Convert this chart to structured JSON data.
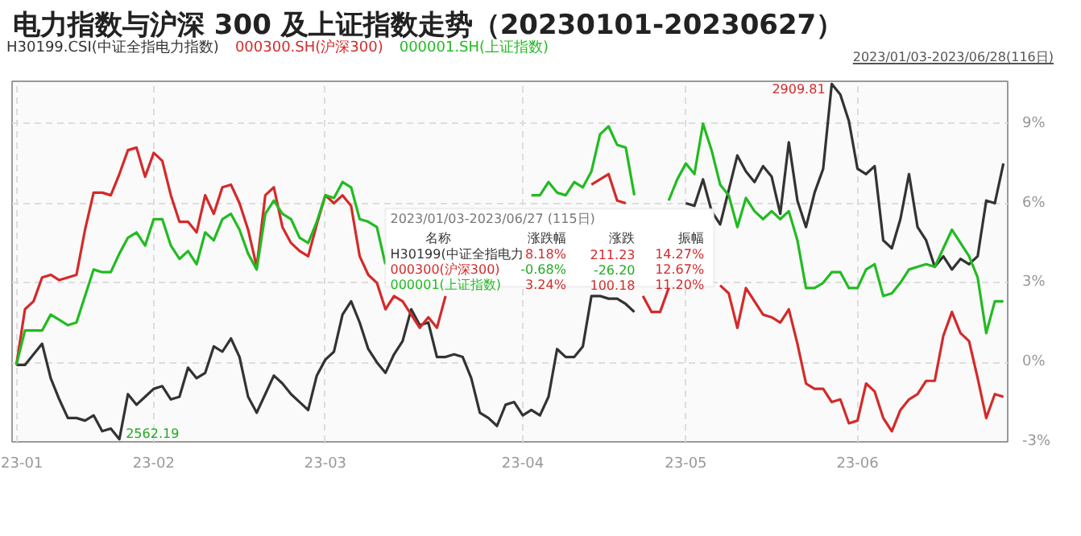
{
  "chart_data": {
    "type": "line",
    "title": "电力指数与沪深 300 及上证指数走势（20230101-20230627）",
    "legend": "top left",
    "grid": true,
    "marker": "none",
    "line_style": "solid",
    "categories": [
      "23-01",
      null,
      null,
      null,
      null,
      null,
      null,
      null,
      null,
      null,
      null,
      null,
      null,
      null,
      null,
      null,
      "23-02",
      null,
      null,
      null,
      null,
      null,
      null,
      null,
      null,
      null,
      null,
      null,
      null,
      null,
      null,
      null,
      null,
      null,
      null,
      null,
      "23-03",
      null,
      null,
      null,
      null,
      null,
      null,
      null,
      null,
      null,
      null,
      null,
      null,
      null,
      null,
      null,
      null,
      null,
      null,
      null,
      null,
      null,
      null,
      "23-04",
      null,
      null,
      null,
      null,
      null,
      null,
      null,
      null,
      null,
      null,
      null,
      null,
      null,
      null,
      null,
      null,
      null,
      null,
      "23-05",
      null,
      null,
      null,
      null,
      null,
      null,
      null,
      null,
      null,
      null,
      null,
      null,
      null,
      null,
      null,
      null,
      null,
      null,
      null,
      "23-06",
      null,
      null,
      null,
      null,
      null,
      null,
      null,
      null,
      null,
      null,
      null,
      null,
      null,
      null,
      null,
      null,
      null
    ],
    "ylim": [
      -3,
      10.6
    ],
    "yticks": [
      {
        "value": -3,
        "label": "-3%"
      },
      {
        "value": 0,
        "label": "0%"
      },
      {
        "value": 3,
        "label": "3%"
      },
      {
        "value": 6,
        "label": "6%"
      },
      {
        "value": 9,
        "label": "9%"
      }
    ],
    "series": [
      {
        "name": "H30199.CSI(中证全指电力指数)",
        "color": "#333333",
        "values": [
          -0.1,
          -0.1,
          0.3,
          0.7,
          -0.6,
          -1.4,
          -2.1,
          -2.1,
          -2.2,
          -2.0,
          -2.6,
          -2.5,
          -2.9,
          -1.2,
          -1.6,
          -1.3,
          -1.0,
          -0.9,
          -1.4,
          -1.3,
          -0.2,
          -0.6,
          -0.4,
          0.6,
          0.4,
          0.9,
          0.2,
          -1.3,
          -1.9,
          -1.2,
          -0.5,
          -0.8,
          -1.2,
          -1.5,
          -1.8,
          -0.5,
          0.1,
          0.4,
          1.8,
          2.3,
          1.5,
          0.5,
          0.0,
          -0.4,
          0.3,
          0.8,
          2.0,
          1.4,
          1.5,
          0.2,
          0.2,
          0.3,
          0.2,
          -0.6,
          -1.9,
          -2.1,
          -2.4,
          -1.6,
          -1.5,
          -2.0,
          -1.8,
          -2.0,
          -1.3,
          0.5,
          0.2,
          0.2,
          0.6,
          2.5,
          2.5,
          2.4,
          2.4,
          2.2,
          1.9,
          null,
          null,
          null,
          null,
          null,
          6.0,
          5.9,
          6.9,
          5.7,
          5.2,
          6.5,
          7.8,
          7.2,
          6.8,
          7.4,
          7.0,
          5.6,
          8.3,
          6.1,
          5.1,
          6.4,
          7.3,
          10.5,
          10.1,
          9.1,
          7.3,
          7.1,
          7.4,
          4.6,
          4.3,
          5.4,
          7.1,
          5.1,
          4.6,
          3.6,
          4.0,
          3.5,
          3.9,
          3.7,
          4.0,
          6.1,
          6.0,
          7.5
        ]
      },
      {
        "name": "000300.SH(沪深300)",
        "color": "#d42a2a",
        "values": [
          -0.1,
          2.0,
          2.3,
          3.2,
          3.3,
          3.1,
          3.2,
          3.3,
          5.0,
          6.4,
          6.4,
          6.3,
          7.1,
          8.0,
          8.1,
          7.0,
          7.9,
          7.6,
          6.3,
          5.3,
          5.3,
          4.9,
          6.3,
          5.6,
          6.6,
          6.7,
          6.0,
          5.0,
          3.6,
          6.3,
          6.6,
          5.1,
          4.5,
          4.2,
          4.0,
          5.2,
          6.3,
          6.0,
          6.3,
          5.9,
          4.0,
          3.3,
          3.0,
          2.0,
          2.5,
          2.3,
          1.8,
          1.3,
          1.7,
          1.3,
          2.5,
          null,
          null,
          null,
          null,
          null,
          null,
          null,
          null,
          null,
          null,
          null,
          null,
          null,
          null,
          null,
          null,
          6.7,
          6.9,
          7.1,
          6.1,
          6.0,
          null,
          2.5,
          1.9,
          1.9,
          2.8,
          null,
          null,
          null,
          null,
          null,
          2.9,
          2.6,
          1.3,
          2.8,
          2.3,
          1.8,
          1.7,
          1.5,
          2.0,
          0.7,
          -0.8,
          -1.0,
          -1.0,
          -1.5,
          -1.4,
          -2.3,
          -2.2,
          -0.8,
          -1.1,
          -2.1,
          -2.6,
          -1.8,
          -1.4,
          -1.2,
          -0.7,
          -0.7,
          1.0,
          1.9,
          1.1,
          0.8,
          -0.6,
          -2.1,
          -1.2,
          -1.3
        ]
      },
      {
        "name": "000001.SH(上证指数)",
        "color": "#22bb22",
        "values": [
          -0.1,
          1.2,
          1.2,
          1.2,
          1.8,
          1.6,
          1.4,
          1.5,
          2.5,
          3.5,
          3.4,
          3.4,
          4.1,
          4.7,
          4.9,
          4.4,
          5.4,
          5.4,
          4.4,
          3.9,
          4.2,
          3.7,
          4.9,
          4.6,
          5.4,
          5.6,
          5.0,
          4.1,
          3.5,
          5.6,
          6.1,
          5.6,
          5.4,
          4.7,
          4.5,
          5.3,
          6.3,
          6.2,
          6.8,
          6.6,
          5.4,
          5.3,
          5.1,
          3.7,
          null,
          null,
          null,
          null,
          null,
          null,
          null,
          null,
          null,
          null,
          null,
          null,
          null,
          null,
          null,
          null,
          6.3,
          6.3,
          6.8,
          6.4,
          6.3,
          6.8,
          6.6,
          7.2,
          8.6,
          8.9,
          8.2,
          8.1,
          6.3,
          null,
          null,
          null,
          6.1,
          6.9,
          7.5,
          7.1,
          9.0,
          8.0,
          6.7,
          6.3,
          5.1,
          6.2,
          5.7,
          5.4,
          5.7,
          5.4,
          5.7,
          4.6,
          2.8,
          2.8,
          3.0,
          3.4,
          3.4,
          2.8,
          2.8,
          3.5,
          3.7,
          2.5,
          2.6,
          3.0,
          3.5,
          3.6,
          3.7,
          3.6,
          4.3,
          5.0,
          4.5,
          4.0,
          3.2,
          1.1,
          2.3,
          2.3
        ]
      }
    ],
    "annotations": [
      "2909.81",
      "2562.19",
      "2023/01/03-2023/06/28(116日)",
      "2023/01/03-2023/06/27 (115日)",
      "名称",
      "涨跌幅",
      "涨跌",
      "振幅",
      "H30199(中证全指电力",
      "8.18%",
      "211.23",
      "14.27%",
      "000300(沪深300)",
      "-0.68%",
      "-26.20",
      "12.67%",
      "000001(上证指数)",
      "3.24%",
      "100.18",
      "11.20%"
    ]
  }
}
